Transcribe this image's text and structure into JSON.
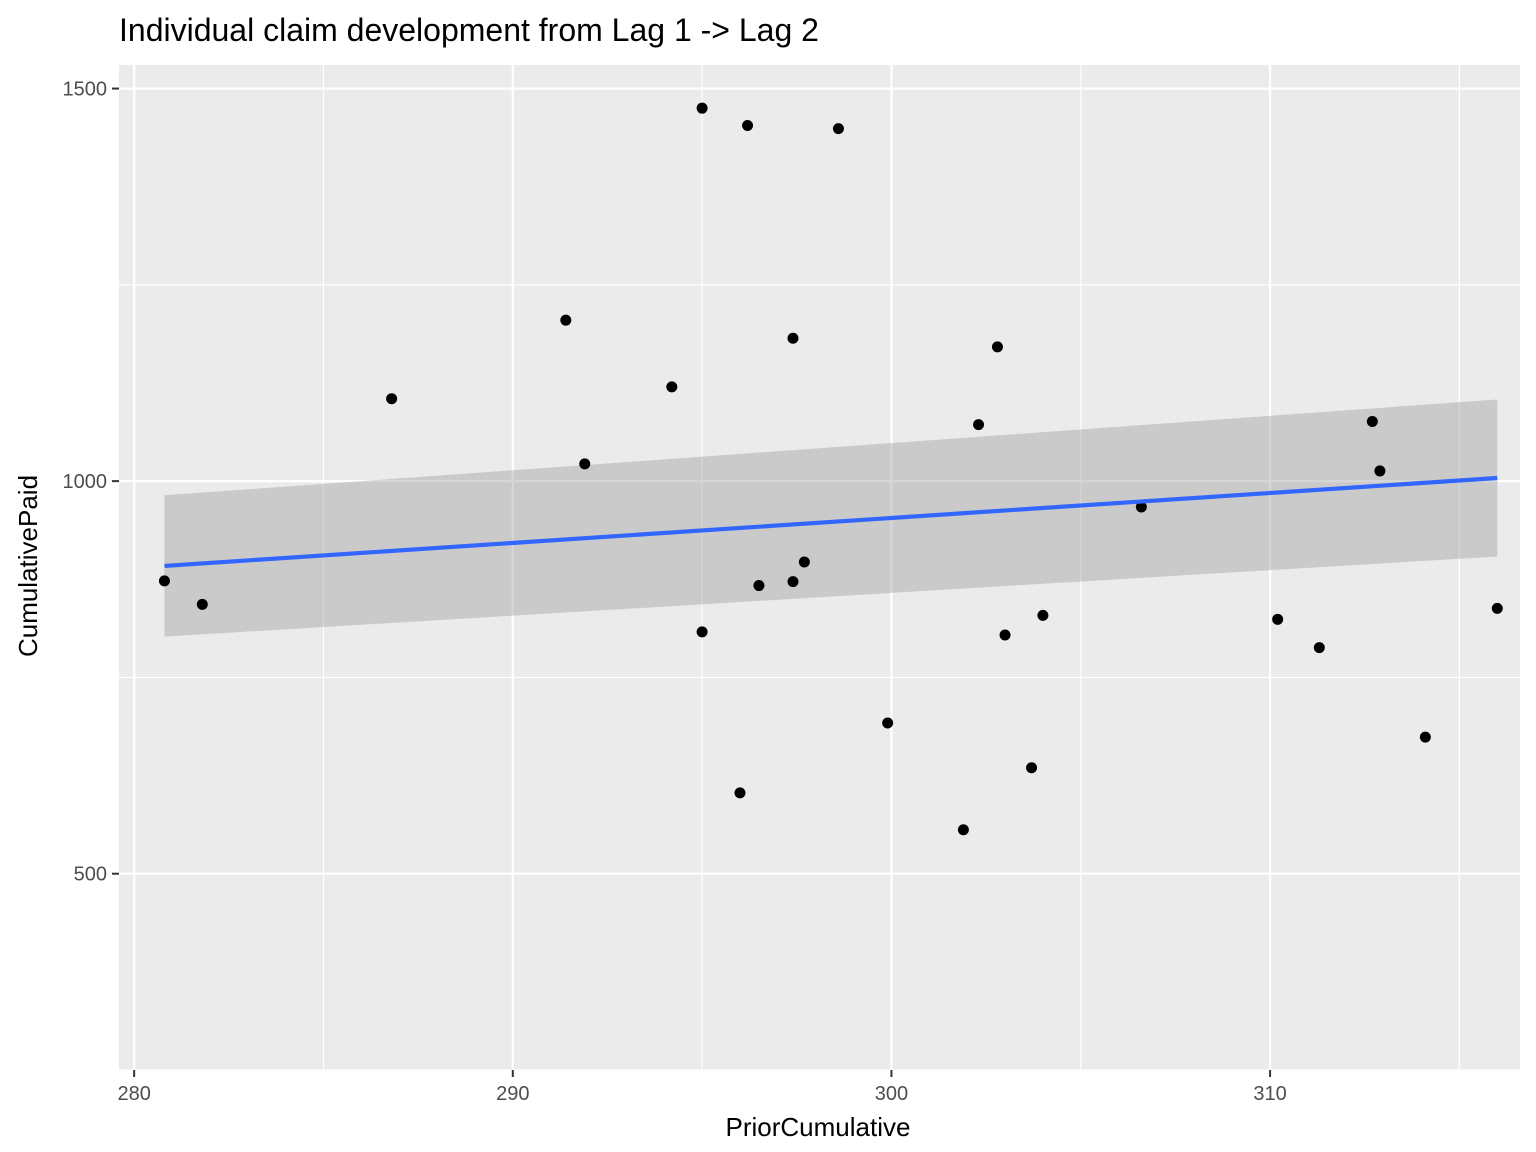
{
  "chart_data": {
    "type": "scatter",
    "title": "Individual claim development from Lag 1 -> Lag 2",
    "xlabel": "PriorCumulative",
    "ylabel": "CumulativePaid",
    "xlim": [
      279.6,
      316.6
    ],
    "ylim": [
      250,
      1530
    ],
    "x_ticks": [
      280,
      290,
      300,
      310
    ],
    "y_ticks": [
      500,
      1000,
      1500
    ],
    "grid": true,
    "legend": "none",
    "colors": {
      "panel": "#ebebeb",
      "grid": "#ffffff",
      "point": "#000000",
      "line": "#3366ff",
      "band": "#999999"
    },
    "points": [
      {
        "x": 280.8,
        "y": 873
      },
      {
        "x": 281.8,
        "y": 843
      },
      {
        "x": 286.8,
        "y": 1105
      },
      {
        "x": 291.4,
        "y": 1205
      },
      {
        "x": 291.9,
        "y": 1022
      },
      {
        "x": 294.2,
        "y": 1120
      },
      {
        "x": 295.0,
        "y": 1475
      },
      {
        "x": 295.0,
        "y": 808
      },
      {
        "x": 296.0,
        "y": 603
      },
      {
        "x": 296.2,
        "y": 1453
      },
      {
        "x": 296.5,
        "y": 867
      },
      {
        "x": 297.4,
        "y": 1182
      },
      {
        "x": 297.4,
        "y": 872
      },
      {
        "x": 297.7,
        "y": 897
      },
      {
        "x": 298.6,
        "y": 1449
      },
      {
        "x": 299.9,
        "y": 692
      },
      {
        "x": 301.9,
        "y": 556
      },
      {
        "x": 302.3,
        "y": 1072
      },
      {
        "x": 302.8,
        "y": 1171
      },
      {
        "x": 303.0,
        "y": 804
      },
      {
        "x": 303.7,
        "y": 635
      },
      {
        "x": 304.0,
        "y": 829
      },
      {
        "x": 306.6,
        "y": 967
      },
      {
        "x": 310.2,
        "y": 824
      },
      {
        "x": 311.3,
        "y": 788
      },
      {
        "x": 312.7,
        "y": 1076
      },
      {
        "x": 312.9,
        "y": 1013
      },
      {
        "x": 314.1,
        "y": 674
      },
      {
        "x": 316.0,
        "y": 838
      }
    ],
    "fit_line": {
      "x": [
        280.8,
        316.0
      ],
      "y": [
        892,
        1004
      ]
    },
    "confidence_band": {
      "x": [
        280.8,
        316.0
      ],
      "upper": [
        982,
        1104
      ],
      "lower": [
        802,
        904
      ]
    }
  }
}
